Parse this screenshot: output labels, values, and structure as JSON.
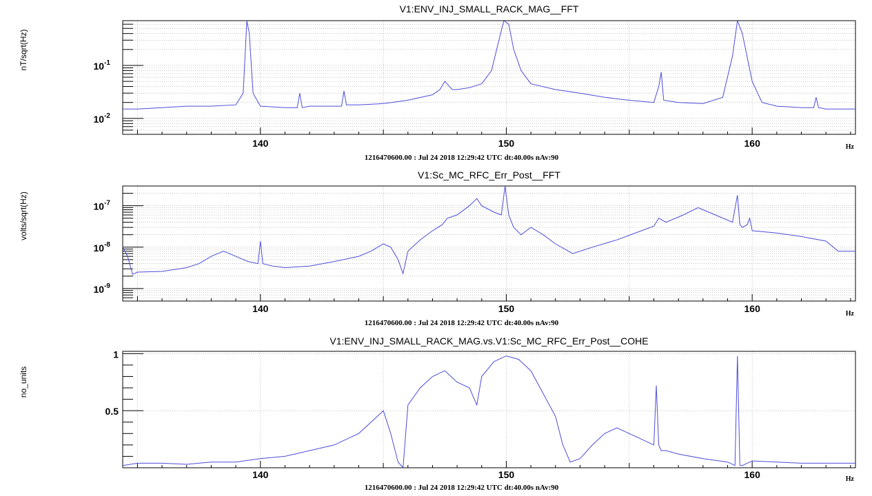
{
  "chart_data": [
    {
      "type": "line",
      "title": "V1:ENV_INJ_SMALL_RACK_MAG__FFT",
      "ylabel": "nT/sqrt(Hz)",
      "xunit": "Hz",
      "caption": "1216470600.00 : Jul 24 2018 12:29:42 UTC dt:40.00s nAv:90",
      "yscale": "log",
      "xlim": [
        134.4,
        164.2
      ],
      "ylim": [
        0.005,
        0.7
      ],
      "xticks": [
        140,
        150,
        160
      ],
      "yticks": [
        {
          "v": 0.1,
          "base": "10",
          "exp": "-1"
        },
        {
          "v": 0.01,
          "base": "10",
          "exp": "-2"
        }
      ],
      "grid": true,
      "color": "#4c4cd9",
      "series": [
        {
          "x": [
            134.4,
            135,
            136,
            137,
            138,
            139,
            139.3,
            139.45,
            139.55,
            139.7,
            140,
            141,
            141.5,
            141.6,
            141.7,
            142,
            143,
            143.3,
            143.4,
            143.5,
            144,
            145,
            146,
            147,
            147.3,
            147.5,
            147.8,
            148,
            148.5,
            149,
            149.4,
            149.7,
            149.9,
            150.1,
            150.3,
            150.6,
            151,
            152,
            153,
            154,
            155,
            156,
            156.2,
            156.3,
            156.4,
            157,
            158,
            158.8,
            159.2,
            159.4,
            159.6,
            160,
            160.4,
            161,
            162,
            162.5,
            162.6,
            162.7,
            163,
            164.2
          ],
          "y": [
            0.015,
            0.015,
            0.016,
            0.017,
            0.017,
            0.018,
            0.03,
            0.7,
            0.4,
            0.03,
            0.017,
            0.016,
            0.016,
            0.03,
            0.016,
            0.017,
            0.017,
            0.017,
            0.033,
            0.018,
            0.018,
            0.019,
            0.022,
            0.028,
            0.035,
            0.05,
            0.035,
            0.035,
            0.038,
            0.045,
            0.08,
            0.3,
            0.7,
            0.6,
            0.2,
            0.08,
            0.045,
            0.035,
            0.03,
            0.025,
            0.022,
            0.02,
            0.04,
            0.075,
            0.022,
            0.02,
            0.019,
            0.025,
            0.15,
            0.7,
            0.4,
            0.05,
            0.02,
            0.017,
            0.016,
            0.016,
            0.025,
            0.016,
            0.015,
            0.015
          ]
        }
      ]
    },
    {
      "type": "line",
      "title": "V1:Sc_MC_RFC_Err_Post__FFT",
      "ylabel": "volts/sqrt(Hz)",
      "xunit": "Hz",
      "caption": "1216470600.00 : Jul 24 2018 12:29:42 UTC dt:40.00s nAv:90",
      "yscale": "log",
      "xlim": [
        134.4,
        164.2
      ],
      "ylim": [
        5e-10,
        3e-07
      ],
      "xticks": [
        140,
        150,
        160
      ],
      "yticks": [
        {
          "v": 1e-07,
          "base": "10",
          "exp": "-7"
        },
        {
          "v": 1e-08,
          "base": "10",
          "exp": "-8"
        },
        {
          "v": 1e-09,
          "base": "10",
          "exp": "-9"
        }
      ],
      "grid": true,
      "color": "#4c4cd9",
      "series": [
        {
          "x": [
            134.4,
            134.6,
            134.8,
            135,
            136,
            137,
            137.5,
            138,
            138.5,
            139,
            139.5,
            139.9,
            140,
            140.1,
            140.5,
            141,
            142,
            143,
            144,
            144.5,
            145,
            145.3,
            145.6,
            145.8,
            146,
            146.5,
            147,
            147.4,
            147.6,
            148,
            148.5,
            148.8,
            149,
            149.5,
            149.8,
            149.95,
            150.1,
            150.3,
            150.6,
            151,
            151.5,
            152,
            152.7,
            153.5,
            154.5,
            155.5,
            156,
            156.2,
            156.5,
            157.2,
            157.8,
            158.5,
            159.2,
            159.4,
            159.5,
            159.6,
            159.8,
            159.9,
            160,
            161,
            162,
            163,
            163.5,
            164.2
          ],
          "y": [
            1e-08,
            6e-09,
            2.2e-09,
            2.5e-09,
            2.6e-09,
            3.2e-09,
            4e-09,
            6e-09,
            8e-09,
            6e-09,
            4.5e-09,
            4e-09,
            1.4e-08,
            4e-09,
            3.5e-09,
            3.2e-09,
            3.5e-09,
            4.5e-09,
            6e-09,
            8e-09,
            1.2e-08,
            1e-08,
            5e-09,
            2.3e-09,
            8e-09,
            1.5e-08,
            2.5e-08,
            3.5e-08,
            5e-08,
            6e-08,
            1e-07,
            1.5e-07,
            1e-07,
            7e-08,
            6e-08,
            3e-07,
            6e-08,
            3e-08,
            2e-08,
            3e-08,
            2e-08,
            1.2e-08,
            7e-09,
            1e-08,
            1.5e-08,
            2.5e-08,
            3.2e-08,
            5e-08,
            4e-08,
            6e-08,
            9e-08,
            6e-08,
            4e-08,
            1.8e-07,
            3.5e-08,
            3e-08,
            3.5e-08,
            5e-08,
            2.5e-08,
            2.2e-08,
            1.8e-08,
            1.4e-08,
            8e-09,
            8e-09
          ]
        }
      ]
    },
    {
      "type": "line",
      "title": "V1:ENV_INJ_SMALL_RACK_MAG.vs.V1:Sc_MC_RFC_Err_Post__COHE",
      "ylabel": "no_units",
      "xunit": "Hz",
      "caption": "1216470600.00 : Jul 24 2018 12:29:42 UTC dt:40.00s nAv:90",
      "yscale": "linear",
      "xlim": [
        134.4,
        164.2
      ],
      "ylim": [
        0,
        1.02
      ],
      "xticks": [
        140,
        150,
        160
      ],
      "yticks": [
        {
          "v": 1,
          "label": "1"
        },
        {
          "v": 0.5,
          "label": "0.5"
        }
      ],
      "grid": true,
      "color": "#4c4cd9",
      "series": [
        {
          "x": [
            134.4,
            135,
            136,
            137,
            138,
            139,
            140,
            141,
            142,
            143,
            144,
            144.5,
            145,
            145.3,
            145.6,
            145.8,
            146,
            146.5,
            147,
            147.5,
            148,
            148.5,
            148.8,
            149,
            149.5,
            150,
            150.5,
            151,
            151.5,
            152,
            152.3,
            152.6,
            153,
            153.5,
            154,
            154.5,
            155,
            155.5,
            156,
            156.1,
            156.2,
            156.3,
            156.5,
            157,
            158,
            159,
            159.3,
            159.4,
            159.5,
            159.6,
            160,
            161,
            162,
            163,
            164.2
          ],
          "y": [
            0.02,
            0.04,
            0.04,
            0.03,
            0.05,
            0.05,
            0.08,
            0.1,
            0.15,
            0.2,
            0.3,
            0.4,
            0.5,
            0.3,
            0.05,
            0.0,
            0.55,
            0.7,
            0.8,
            0.85,
            0.75,
            0.7,
            0.55,
            0.8,
            0.93,
            0.98,
            0.95,
            0.85,
            0.65,
            0.45,
            0.2,
            0.05,
            0.08,
            0.2,
            0.3,
            0.35,
            0.3,
            0.25,
            0.2,
            0.72,
            0.2,
            0.15,
            0.15,
            0.12,
            0.08,
            0.05,
            0.02,
            0.98,
            0.02,
            0.02,
            0.06,
            0.05,
            0.04,
            0.04,
            0.04
          ]
        }
      ]
    }
  ]
}
